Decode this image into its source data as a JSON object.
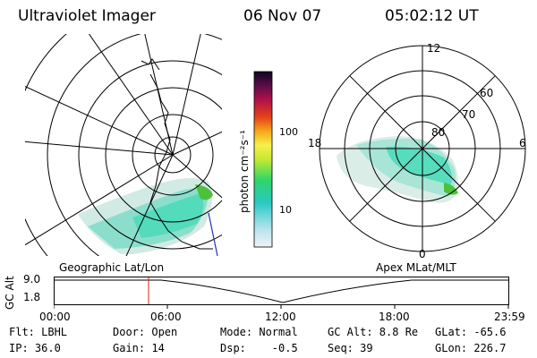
{
  "header": {
    "instrument": "Ultraviolet Imager",
    "date": "06 Nov 07",
    "time": "05:02:12 UT"
  },
  "colorbar": {
    "label": "photon cm⁻²s⁻¹",
    "ticks": [
      "100",
      "10"
    ]
  },
  "polar": {
    "mlt_labels": [
      "12",
      "18",
      "6",
      "0"
    ],
    "lat_labels": [
      "60",
      "70",
      "80"
    ]
  },
  "map_labels": {
    "left": "Geographic Lat/Lon",
    "right": "Apex MLat/MLT"
  },
  "altitude_plot": {
    "ylabel": "GC Alt",
    "yticks": [
      "9.0",
      "1.8"
    ],
    "xticks": [
      "00:00",
      "06:00",
      "12:00",
      "18:00",
      "23:59"
    ],
    "marker_color": "#dd2222"
  },
  "footer": {
    "rows": [
      [
        "Flt: LBHL",
        "Door: Open",
        "Mode: Normal",
        "GC Alt: 8.8 Re",
        "GLat: -65.6"
      ],
      [
        "IP: 36.0",
        "Gain: 14",
        "Dsp:    -0.5",
        "Seq: 39",
        "GLon: 226.7"
      ]
    ]
  }
}
